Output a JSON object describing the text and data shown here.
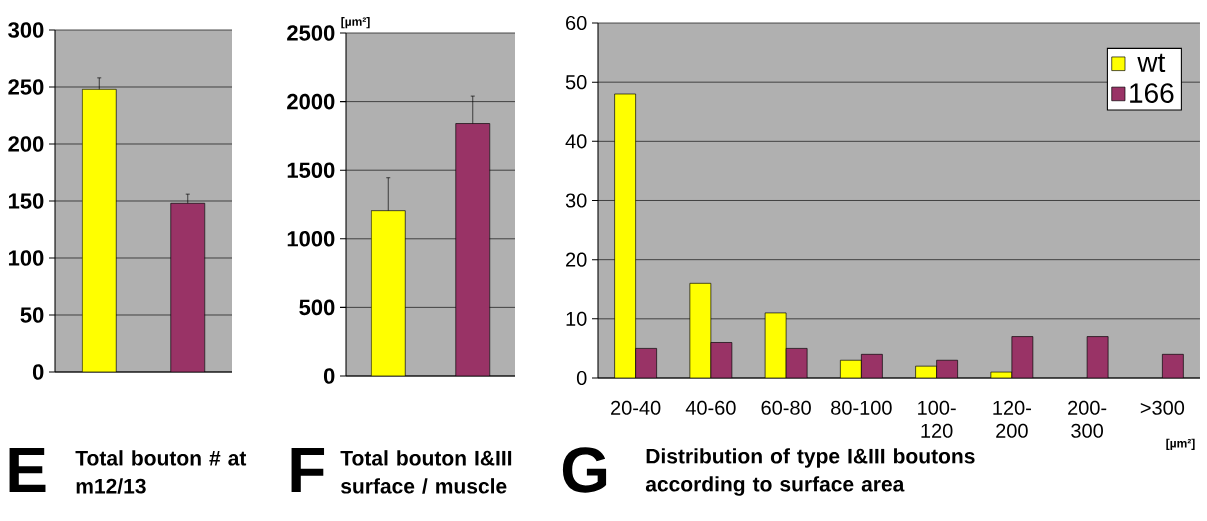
{
  "chart_data": [
    {
      "type": "bar",
      "title": "Total bouton # at m12/13",
      "annotations": [
        "E"
      ],
      "categories": [
        null,
        null
      ],
      "values": [
        248,
        148
      ],
      "colors": [
        "#ffff00",
        "#993366"
      ],
      "errors": [
        [
          248,
          258
        ],
        [
          148,
          156
        ]
      ],
      "ylim": [
        0,
        300
      ],
      "yticks": [
        0,
        50,
        100,
        150,
        200,
        250,
        300
      ],
      "grid": "y"
    },
    {
      "type": "bar",
      "title": "Total bouton I&III surface / muscle",
      "annotations": [
        "F"
      ],
      "ylabel": "[µm²]",
      "categories": [
        null,
        null
      ],
      "values": [
        1205,
        1840
      ],
      "colors": [
        "#ffff00",
        "#993366"
      ],
      "errors": [
        [
          1205,
          1445
        ],
        [
          1840,
          2040
        ]
      ],
      "ylim": [
        0,
        2500
      ],
      "yticks": [
        0,
        500,
        1000,
        1500,
        2000,
        2500
      ],
      "grid": "y"
    },
    {
      "type": "bar",
      "title": "Distribution of type I&III boutons according to surface area",
      "annotations": [
        "G"
      ],
      "xlabel": "[µm²]",
      "categories": [
        "20-40",
        "40-60",
        "60-80",
        "80-100",
        "100-120",
        "120-200",
        "200-300",
        ">300"
      ],
      "series": [
        {
          "name": "wt",
          "color": "#ffff00",
          "values": [
            48,
            16,
            11,
            3,
            2,
            1,
            null,
            null
          ]
        },
        {
          "name": "166",
          "color": "#993366",
          "values": [
            5,
            6,
            5,
            4,
            3,
            7,
            7,
            4
          ]
        }
      ],
      "ylim": [
        0,
        60
      ],
      "yticks": [
        0,
        10,
        20,
        30,
        40,
        50,
        60
      ],
      "grid": "y",
      "legend": "top right"
    }
  ]
}
